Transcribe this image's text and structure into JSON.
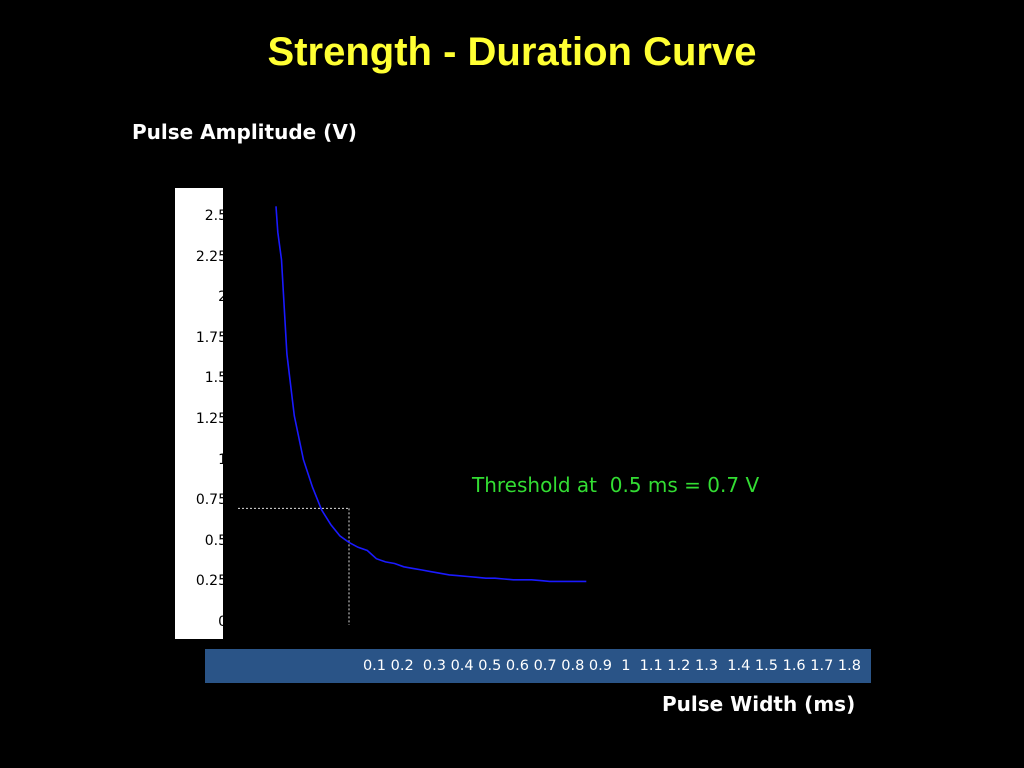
{
  "title": "Strength - Duration Curve",
  "chart_data": {
    "type": "line",
    "title": "Strength - Duration Curve",
    "ylabel": "Pulse Amplitude (V)",
    "xlabel": "Pulse Width (ms)",
    "yticks": [
      "2.5",
      "2.25",
      "2",
      "1.75",
      "1.5",
      "1.25",
      "1",
      "0.75",
      "0.5",
      "0.25",
      "0"
    ],
    "xtick_text": "0.1 0.2  0.3 0.4 0.5 0.6 0.7 0.8 0.9  1  1.1 1.2 1.3  1.4 1.5 1.6 1.7 1.8",
    "ylim": [
      0,
      2.5
    ],
    "xlim": [
      0,
      1.8
    ],
    "series": [
      {
        "color": "#1a1aff",
        "x": [
          0.1,
          0.11,
          0.13,
          0.16,
          0.2,
          0.25,
          0.3,
          0.35,
          0.4,
          0.45,
          0.5,
          0.55,
          0.6,
          0.65,
          0.7,
          0.75,
          0.8,
          0.85,
          0.9,
          0.95,
          1.0,
          1.05,
          1.1,
          1.15,
          1.2,
          1.25,
          1.3,
          1.35,
          1.4,
          1.45,
          1.5,
          1.55,
          1.6,
          1.65,
          1.7,
          1.75,
          1.8
        ],
        "y": [
          2.56,
          2.4,
          2.23,
          1.65,
          1.27,
          1.0,
          0.83,
          0.69,
          0.6,
          0.53,
          0.49,
          0.46,
          0.44,
          0.39,
          0.37,
          0.36,
          0.34,
          0.33,
          0.32,
          0.31,
          0.3,
          0.29,
          0.285,
          0.28,
          0.275,
          0.27,
          0.27,
          0.265,
          0.26,
          0.26,
          0.26,
          0.255,
          0.25,
          0.25,
          0.25,
          0.25,
          0.25
        ]
      }
    ],
    "threshold": {
      "x": 0.5,
      "y": 0.7
    },
    "annotation": "Threshold at  0.5 ms = 0.7 V",
    "colors": {
      "background": "#000000",
      "title": "#ffff33",
      "annotation": "#33dd33",
      "xaxis_bar": "#2a5487",
      "curve": "#1a1aff",
      "yaxis_panel": "#ffffff"
    }
  }
}
